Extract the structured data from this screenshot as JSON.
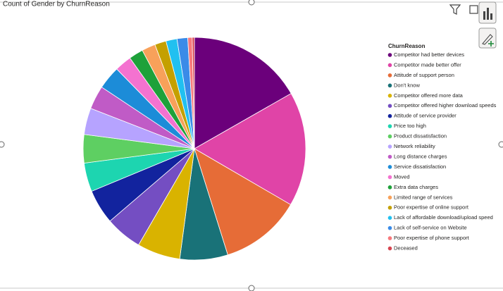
{
  "chart_data": {
    "type": "pie",
    "title": "Count of Gender by ChurnReason",
    "legend_title": "ChurnReason",
    "categories": [
      "Competitor had better devices",
      "Competitor made better offer",
      "Attitude of support person",
      "Don't know",
      "Competitor offered more data",
      "Competitor offered higher download speeds",
      "Attitude of service provider",
      "Price too high",
      "Product dissatisfaction",
      "Network reliability",
      "Long distance charges",
      "Service dissatisfaction",
      "Moved",
      "Extra data charges",
      "Limited range of services",
      "Poor expertise of online support",
      "Lack of affordable download/upload speed",
      "Lack of self-service on Website",
      "Poor expertise of phone support",
      "Deceased"
    ],
    "values": [
      313,
      311,
      220,
      130,
      117,
      100,
      94,
      78,
      77,
      72,
      64,
      63,
      46,
      39,
      37,
      31,
      30,
      29,
      12,
      6
    ],
    "colors": [
      "#6B007B",
      "#E044A7",
      "#E66C37",
      "#197278",
      "#D9B300",
      "#744EC2",
      "#12239E",
      "#1DD5B0",
      "#5ECF62",
      "#B6A3FF",
      "#C05BC6",
      "#1C8CD8",
      "#F472D0",
      "#1EA13A",
      "#F8A15A",
      "#C4A000",
      "#21C0F0",
      "#3A8BE8",
      "#F7797C",
      "#D64550"
    ],
    "legend": "right"
  }
}
